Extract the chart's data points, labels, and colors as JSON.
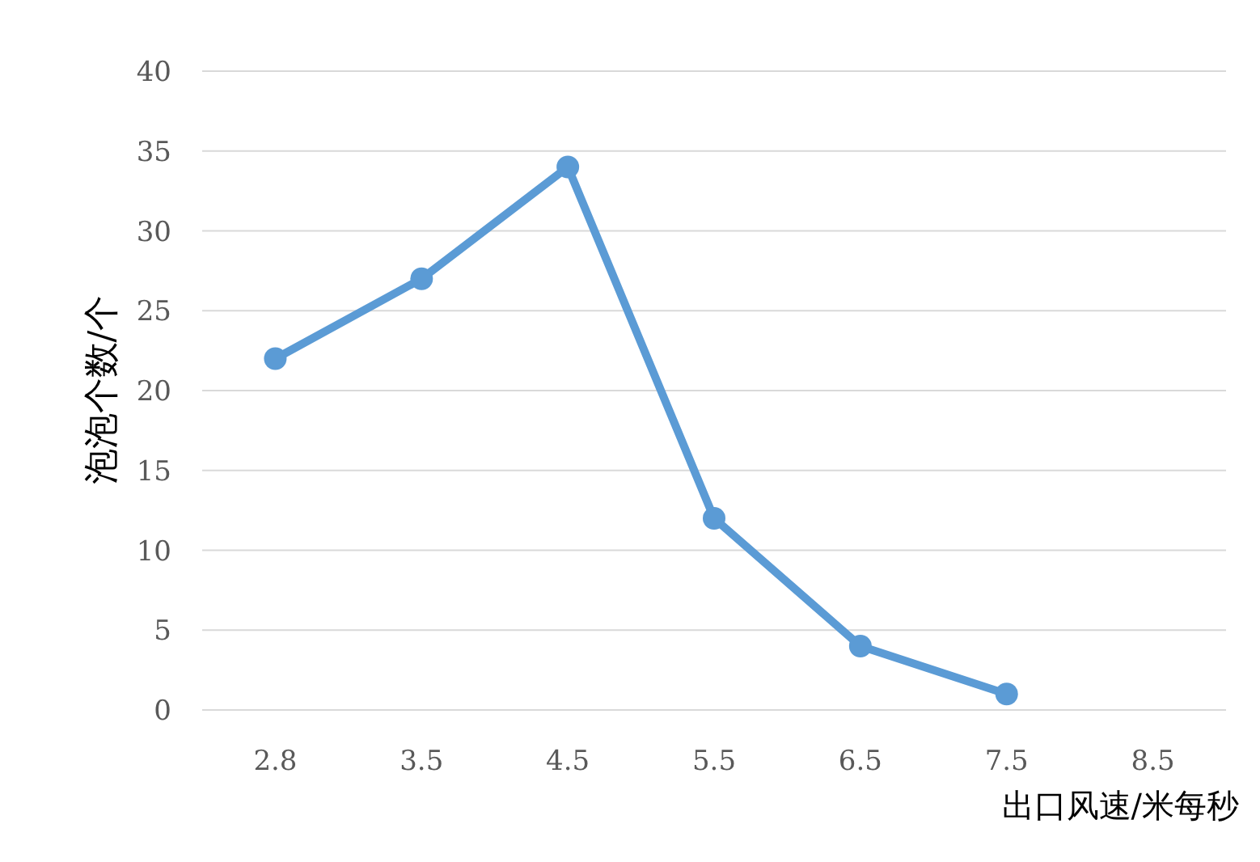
{
  "chart_data": {
    "type": "line",
    "xlabel": "出口风速/米每秒",
    "ylabel": "泡泡个数/个",
    "categories": [
      "2.8",
      "3.5",
      "4.5",
      "5.5",
      "6.5",
      "7.5",
      "8.5"
    ],
    "values": [
      22,
      27,
      34,
      12,
      4,
      1,
      null
    ],
    "color": "#5b9bd5",
    "ylim": [
      0,
      40
    ],
    "yticks": [
      0,
      5,
      10,
      15,
      20,
      25,
      30,
      35,
      40
    ],
    "grid": "y",
    "marker": "circle"
  }
}
